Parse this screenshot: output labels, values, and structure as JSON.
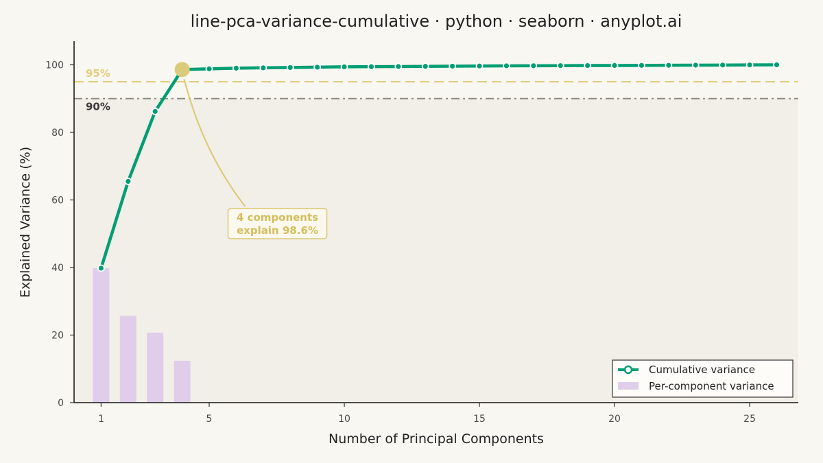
{
  "chart_data": {
    "type": "line",
    "title": "line-pca-variance-cumulative · python · seaborn · anyplot.ai",
    "xlabel": "Number of Principal Components",
    "ylabel": "Explained Variance (%)",
    "xlim": [
      0,
      26.8
    ],
    "ylim": [
      0,
      107
    ],
    "xticks": [
      1,
      5,
      10,
      15,
      20,
      25
    ],
    "yticks": [
      0,
      20,
      40,
      60,
      80,
      100
    ],
    "x": [
      1,
      2,
      3,
      4,
      5,
      6,
      7,
      8,
      9,
      10,
      11,
      12,
      13,
      14,
      15,
      16,
      17,
      18,
      19,
      20,
      21,
      22,
      23,
      24,
      25,
      26
    ],
    "series": [
      {
        "name": "Cumulative variance",
        "type": "line",
        "color": "#009e73",
        "values": [
          39.8,
          65.5,
          86.2,
          98.6,
          98.8,
          99.0,
          99.1,
          99.2,
          99.3,
          99.4,
          99.45,
          99.5,
          99.55,
          99.6,
          99.65,
          99.7,
          99.72,
          99.75,
          99.78,
          99.8,
          99.83,
          99.86,
          99.9,
          99.93,
          99.96,
          100.0
        ]
      },
      {
        "name": "Per-component variance",
        "type": "bar",
        "color": "#e0cdea",
        "x": [
          1,
          2,
          3,
          4
        ],
        "values": [
          39.8,
          25.7,
          20.7,
          12.4
        ]
      }
    ],
    "thresholds": [
      {
        "value": 95,
        "label": "95%",
        "color": "#e2cd7e",
        "style": "dashed"
      },
      {
        "value": 90,
        "label": "90%",
        "color": "#8e8b85",
        "style": "dashdot"
      }
    ],
    "highlight": {
      "x": 4,
      "y": 98.6,
      "color": "#dccb7a"
    },
    "annotation": {
      "line1": "4 components",
      "line2": "explain 98.6%",
      "x": 7.5,
      "y": 55
    },
    "shaded_region_below": 90,
    "grid": false,
    "legend_position": "bottom-right"
  }
}
